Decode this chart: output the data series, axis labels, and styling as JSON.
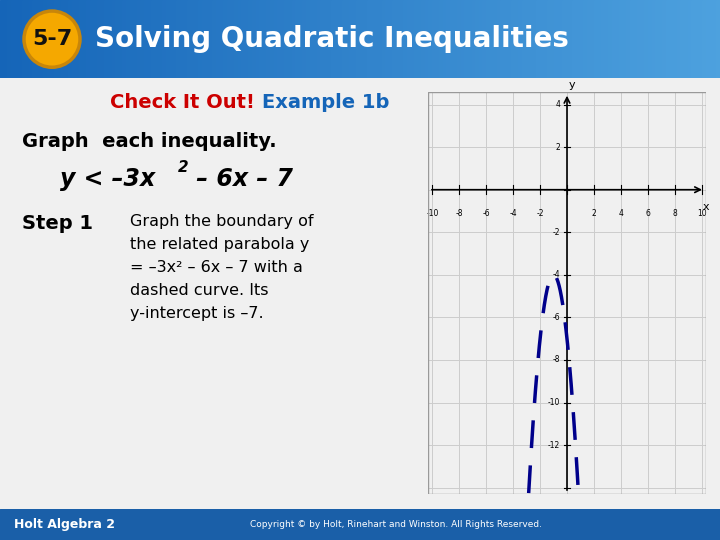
{
  "title_badge": "5-7",
  "title_text": "Solving Quadratic Inequalities",
  "subtitle_check": "Check It Out!",
  "subtitle_example": "Example 1b",
  "body_line1": "Graph  each inequality.",
  "step_label": "Step 1",
  "step_lines": [
    "Graph the boundary of",
    "the related parabola y",
    "= –3x² – 6x – 7 with a",
    "dashed curve. Its",
    "y-intercept is –7."
  ],
  "footer_left": "Holt Algebra 2",
  "footer_right": "Copyright © by Holt, Rinehart and Winston. All Rights Reserved.",
  "header_bg_left": "#1565b8",
  "header_bg_right": "#5bb0e8",
  "badge_color": "#f5a800",
  "badge_outline": "#c8860a",
  "title_font_color": "#ffffff",
  "check_color": "#cc0000",
  "example_color": "#1565b8",
  "body_bg_color": "#f0f0f0",
  "graph_bg_color": "#ffffff",
  "graph_xlim": [
    -10,
    10
  ],
  "graph_ylim": [
    -14,
    4
  ],
  "graph_xticks": [
    -10,
    -8,
    -6,
    -4,
    -2,
    0,
    2,
    4,
    6,
    8,
    10
  ],
  "graph_yticks": [
    -14,
    -12,
    -10,
    -8,
    -6,
    -4,
    -2,
    0,
    2,
    4
  ],
  "x_label_ticks": [
    -10,
    -8,
    -6,
    -4,
    -2,
    2,
    4,
    6,
    8,
    10
  ],
  "y_label_ticks": [
    -12,
    -10,
    -8,
    -6,
    -4,
    -2,
    2,
    4
  ],
  "curve_color": "#00008b",
  "footer_bg_color": "#1a5fa8",
  "grid_color": "#cccccc"
}
